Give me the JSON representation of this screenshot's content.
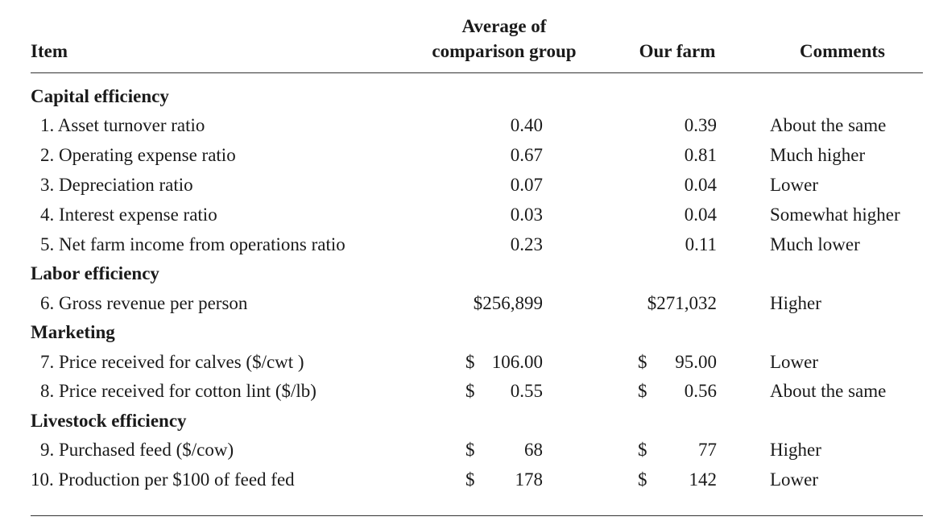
{
  "header": {
    "item": "Item",
    "average_line1": "Average of",
    "average_line2": "comparison group",
    "our_farm": "Our farm",
    "comments": "Comments"
  },
  "rows": [
    {
      "type": "section",
      "label": "Capital efficiency"
    },
    {
      "type": "data",
      "label": "1. Asset turnover ratio",
      "avg_currency": "",
      "avg": "0.40",
      "our_currency": "",
      "our": "0.39",
      "comment": "About the same"
    },
    {
      "type": "data",
      "label": "2. Operating expense ratio",
      "avg_currency": "",
      "avg": "0.67",
      "our_currency": "",
      "our": "0.81",
      "comment": "Much higher"
    },
    {
      "type": "data",
      "label": "3. Depreciation ratio",
      "avg_currency": "",
      "avg": "0.07",
      "our_currency": "",
      "our": "0.04",
      "comment": "Lower"
    },
    {
      "type": "data",
      "label": "4. Interest expense ratio",
      "avg_currency": "",
      "avg": "0.03",
      "our_currency": "",
      "our": "0.04",
      "comment": "Somewhat higher"
    },
    {
      "type": "data",
      "label": "5. Net farm income from operations ratio",
      "avg_currency": "",
      "avg": "0.23",
      "our_currency": "",
      "our": "0.11",
      "comment": "Much lower"
    },
    {
      "type": "section",
      "label": "Labor efficiency"
    },
    {
      "type": "data",
      "label": "6. Gross revenue per person",
      "avg_currency": "",
      "avg": "$256,899",
      "our_currency": "",
      "our": "$271,032",
      "comment": "Higher"
    },
    {
      "type": "section",
      "label": "Marketing"
    },
    {
      "type": "data",
      "label": "7. Price received for calves ($/cwt )",
      "avg_currency": "$",
      "avg": "106.00",
      "our_currency": "$",
      "our": "95.00",
      "comment": "Lower"
    },
    {
      "type": "data",
      "label": "8. Price received for cotton lint ($/lb)",
      "avg_currency": "$",
      "avg": "0.55",
      "our_currency": "$",
      "our": "0.56",
      "comment": "About the same"
    },
    {
      "type": "section",
      "label": "Livestock efficiency"
    },
    {
      "type": "data",
      "label": "9. Purchased feed ($/cow)",
      "avg_currency": "$",
      "avg": "68",
      "our_currency": "$",
      "our": "77",
      "comment": "Higher"
    },
    {
      "type": "data",
      "label": "10. Production per $100 of feed fed",
      "avg_currency": "$",
      "avg": "178",
      "our_currency": "$",
      "our": "142",
      "comment": "Lower"
    }
  ]
}
